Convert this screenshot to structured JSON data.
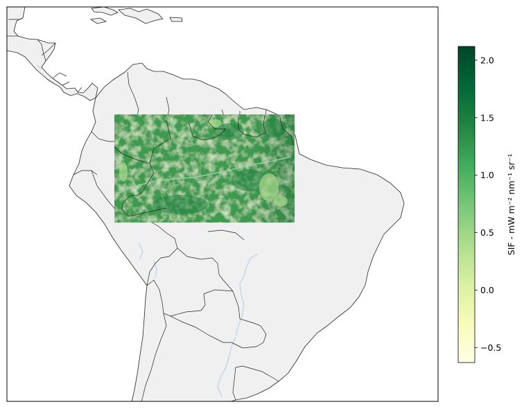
{
  "colorbar": {
    "label": "SIF -  mW m⁻² nm⁻¹ sr⁻¹",
    "vmin": -0.63,
    "vmax": 2.12,
    "ticks": [
      -0.5,
      0.0,
      0.5,
      1.0,
      1.5,
      2.0
    ],
    "tick_labels": [
      "−0.5",
      "0.0",
      "0.5",
      "1.0",
      "1.5",
      "2.0"
    ],
    "colormap": "YlGn",
    "colors": [
      "#ffffe5",
      "#f7fcb9",
      "#d9f0a3",
      "#addd8e",
      "#78c679",
      "#41ab5d",
      "#238443",
      "#006837",
      "#004529"
    ]
  },
  "map": {
    "land_color": "#f0f0f0",
    "border_color": "#222222",
    "river_color": "#c6d8ea",
    "ocean_color": "#ffffff"
  },
  "sif_overlay": {
    "region": "Amazon basin subset",
    "typical_value": 1.3,
    "base_color": "#3e9a4f"
  }
}
